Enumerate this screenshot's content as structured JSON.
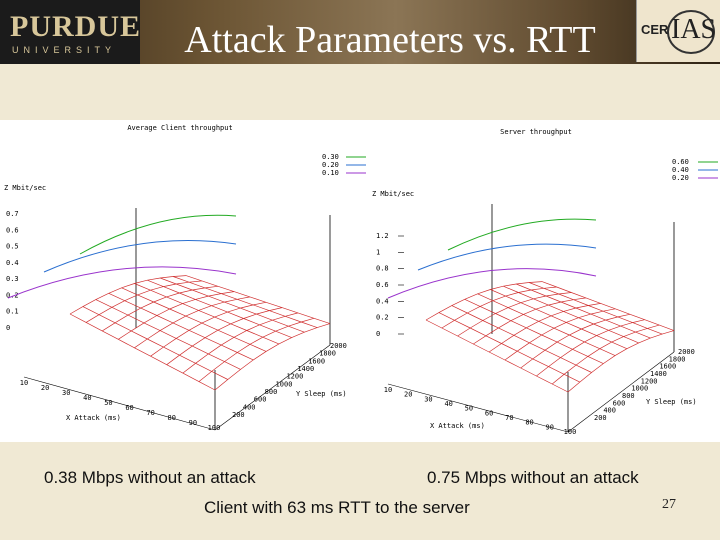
{
  "header": {
    "logo_left_big": "PURDUE",
    "logo_left_small": "UNIVERSITY",
    "title": "Attack Parameters vs. RTT",
    "logo_right_cer": "CER",
    "logo_right_ias": "IAS"
  },
  "colors": {
    "grid": "#d03030",
    "axes": "#000000",
    "series1": "#22aa22",
    "series2": "#2a6fd0",
    "series3": "#9933cc"
  },
  "chart_data": [
    {
      "type": "surface",
      "title": "Average Client throughput",
      "zlabel": "Z Mbit/sec",
      "xlabel": "X Attack (ms)",
      "ylabel": "Y Sleep (ms)",
      "z_ticks": [
        "0.7",
        "0.6",
        "0.5",
        "0.4",
        "0.3",
        "0.2",
        "0.1",
        "0"
      ],
      "x_ticks": [
        "10",
        "20",
        "30",
        "40",
        "50",
        "60",
        "70",
        "80",
        "90",
        "100"
      ],
      "y_ticks": [
        "200",
        "400",
        "600",
        "800",
        "1000",
        "1200",
        "1400",
        "1600",
        "1800",
        "2000"
      ],
      "legend": [
        "0.30",
        "0.20",
        "0.10"
      ],
      "legend_placement": "top-right"
    },
    {
      "type": "surface",
      "title": "Server throughput",
      "zlabel": "Z Mbit/sec",
      "xlabel": "X Attack (ms)",
      "ylabel": "Y Sleep (ms)",
      "z_ticks": [
        "1.2",
        "1",
        "0.8",
        "0.6",
        "0.4",
        "0.2",
        "0"
      ],
      "x_ticks": [
        "10",
        "20",
        "30",
        "40",
        "50",
        "60",
        "70",
        "80",
        "90",
        "100"
      ],
      "y_ticks": [
        "200",
        "400",
        "600",
        "800",
        "1000",
        "1200",
        "1400",
        "1600",
        "1800",
        "2000"
      ],
      "legend": [
        "0.60",
        "0.40",
        "0.20"
      ],
      "legend_placement": "top-right"
    }
  ],
  "captions": {
    "left": "0.38 Mbps without an attack",
    "right": "0.75 Mbps without an attack",
    "footer": "Client with 63 ms RTT to the server",
    "slide_number": "27"
  }
}
